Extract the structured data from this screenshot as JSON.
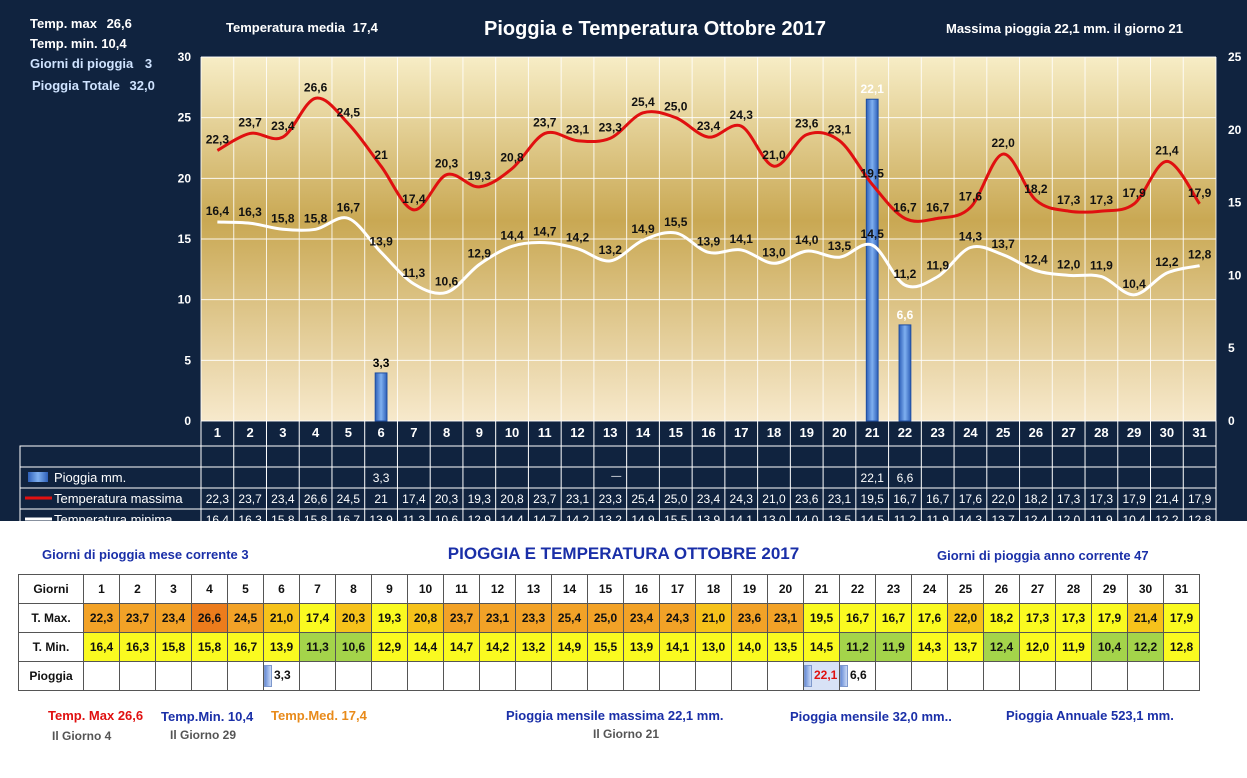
{
  "header": {
    "title": "Pioggia e Temperatura Ottobre 2017",
    "tmax_label": "Temp. max",
    "tmax_value": "26,6",
    "tmin_label": "Temp.  min.",
    "tmin_value": "10,4",
    "rain_days_label": "Giorni di pioggia",
    "rain_days_value": "3",
    "rain_total_label": "Pioggia Totale",
    "rain_total_value": "32,0",
    "mean_label": "Temperatura media",
    "mean_value": "17,4",
    "max_rain_text": "Massima pioggia  22,1 mm.  il giorno 21"
  },
  "chart_data": {
    "type": "bar",
    "title": "Pioggia e Temperatura Ottobre 2017",
    "categories": [
      "1",
      "2",
      "3",
      "4",
      "5",
      "6",
      "7",
      "8",
      "9",
      "10",
      "11",
      "12",
      "13",
      "14",
      "15",
      "16",
      "17",
      "18",
      "19",
      "20",
      "21",
      "22",
      "23",
      "24",
      "25",
      "26",
      "27",
      "28",
      "29",
      "30",
      "31"
    ],
    "ylim_left": [
      0,
      30
    ],
    "yticks_left": [
      "0",
      "5",
      "10",
      "15",
      "20",
      "25",
      "30"
    ],
    "ylim_right": [
      0,
      25
    ],
    "yticks_right": [
      "0",
      "5",
      "10",
      "15",
      "20",
      "25"
    ],
    "grid": true,
    "series": [
      {
        "name": "Pioggia mm.",
        "type": "bar",
        "axis": "right",
        "color": "#3f7fd6",
        "values": [
          null,
          null,
          null,
          null,
          null,
          3.3,
          null,
          null,
          null,
          null,
          null,
          null,
          null,
          null,
          null,
          null,
          null,
          null,
          null,
          null,
          22.1,
          6.6,
          null,
          null,
          null,
          null,
          null,
          null,
          null,
          null,
          null
        ],
        "labels": [
          "",
          "",
          "",
          "",
          "",
          "3,3",
          "",
          "",
          "",
          "",
          "",
          "",
          "",
          "",
          "",
          "",
          "",
          "",
          "",
          "",
          "22,1",
          "6,6",
          "",
          "",
          "",
          "",
          "",
          "",
          "",
          "",
          ""
        ]
      },
      {
        "name": "Temperatura massima",
        "type": "line",
        "axis": "left",
        "color": "#e01010",
        "values": [
          22.3,
          23.7,
          23.4,
          26.6,
          24.5,
          21.0,
          17.4,
          20.3,
          19.3,
          20.8,
          23.7,
          23.1,
          23.3,
          25.4,
          25.0,
          23.4,
          24.3,
          21.0,
          23.6,
          23.1,
          19.5,
          16.7,
          16.7,
          17.6,
          22.0,
          18.2,
          17.3,
          17.3,
          17.9,
          21.4,
          17.9
        ],
        "labels": [
          "22,3",
          "23,7",
          "23,4",
          "26,6",
          "24,5",
          "21",
          "17,4",
          "20,3",
          "19,3",
          "20,8",
          "23,7",
          "23,1",
          "23,3",
          "25,4",
          "25,0",
          "23,4",
          "24,3",
          "21,0",
          "23,6",
          "23,1",
          "19,5",
          "16,7",
          "16,7",
          "17,6",
          "22,0",
          "18,2",
          "17,3",
          "17,3",
          "17,9",
          "21,4",
          "17,9"
        ]
      },
      {
        "name": "Temperatura minima",
        "type": "line",
        "axis": "left",
        "color": "#ffffff",
        "values": [
          16.4,
          16.3,
          15.8,
          15.8,
          16.7,
          13.9,
          11.3,
          10.6,
          12.9,
          14.4,
          14.7,
          14.2,
          13.2,
          14.9,
          15.5,
          13.9,
          14.1,
          13.0,
          14.0,
          13.5,
          14.5,
          11.2,
          11.9,
          14.3,
          13.7,
          12.4,
          12.0,
          11.9,
          10.4,
          12.2,
          12.8
        ],
        "labels": [
          "16,4",
          "16,3",
          "15,8",
          "15,8",
          "16,7",
          "13,9",
          "11,3",
          "10,6",
          "12,9",
          "14,4",
          "14,7",
          "14,2",
          "13,2",
          "14,9",
          "15,5",
          "13,9",
          "14,1",
          "13,0",
          "14,0",
          "13,5",
          "14,5",
          "11,2",
          "11,9",
          "14,3",
          "13,7",
          "12,4",
          "12,0",
          "11,9",
          "10,4",
          "12,2",
          "12,8"
        ]
      }
    ],
    "chart_table_extra_mark": "—"
  },
  "summary": {
    "title": "PIOGGIA E TEMPERATURA OTTOBRE 2017",
    "rain_days_month": "Giorni di pioggia mese corrente   3",
    "rain_days_year": "Giorni di pioggia anno corrente  47",
    "table_headers": [
      "Giorni",
      "T. Max.",
      "T. Min.",
      "Pioggia"
    ],
    "tmax_colors": [
      "#f2a227",
      "#f2a227",
      "#f2a227",
      "#ec7c1c",
      "#f2a227",
      "#f6c21b",
      "#fafa20",
      "#f6c21b",
      "#fafa20",
      "#f6c21b",
      "#f2a227",
      "#f2a227",
      "#f2a227",
      "#f2a227",
      "#f2a227",
      "#f2a227",
      "#f2a227",
      "#f6c21b",
      "#f2a227",
      "#f2a227",
      "#fafa20",
      "#fafa20",
      "#fafa20",
      "#fafa20",
      "#f6c21b",
      "#fafa20",
      "#fafa20",
      "#fafa20",
      "#fafa20",
      "#f6c21b",
      "#fafa20"
    ],
    "tmin_colors": [
      "#fafa20",
      "#fafa20",
      "#fafa20",
      "#fafa20",
      "#fafa20",
      "#fafa20",
      "#a4d44a",
      "#a4d44a",
      "#fafa20",
      "#fafa20",
      "#fafa20",
      "#fafa20",
      "#fafa20",
      "#fafa20",
      "#fafa20",
      "#fafa20",
      "#fafa20",
      "#fafa20",
      "#fafa20",
      "#fafa20",
      "#fafa20",
      "#a4d44a",
      "#a4d44a",
      "#fafa20",
      "#fafa20",
      "#a4d44a",
      "#fafa20",
      "#fafa20",
      "#a4d44a",
      "#a4d44a",
      "#fafa20"
    ],
    "rain_highlight_color": "#e01010"
  },
  "footer": {
    "temp_max": "Temp. Max  26,6",
    "temp_max_day": "Il Giorno   4",
    "temp_min": "Temp.Min.  10,4",
    "temp_min_day": "Il Giorno 29",
    "temp_med": "Temp.Med. 17,4",
    "rain_max": "Pioggia mensile massima  22,1 mm.",
    "rain_max_day": "Il Giorno 21",
    "rain_month": "Pioggia mensile  32,0    mm..",
    "rain_year": "Pioggia Annuale  523,1 mm.",
    "colors": {
      "max": "#e01010",
      "min": "#1a2fa8",
      "med": "#e88a1a",
      "day": "#555555"
    }
  }
}
